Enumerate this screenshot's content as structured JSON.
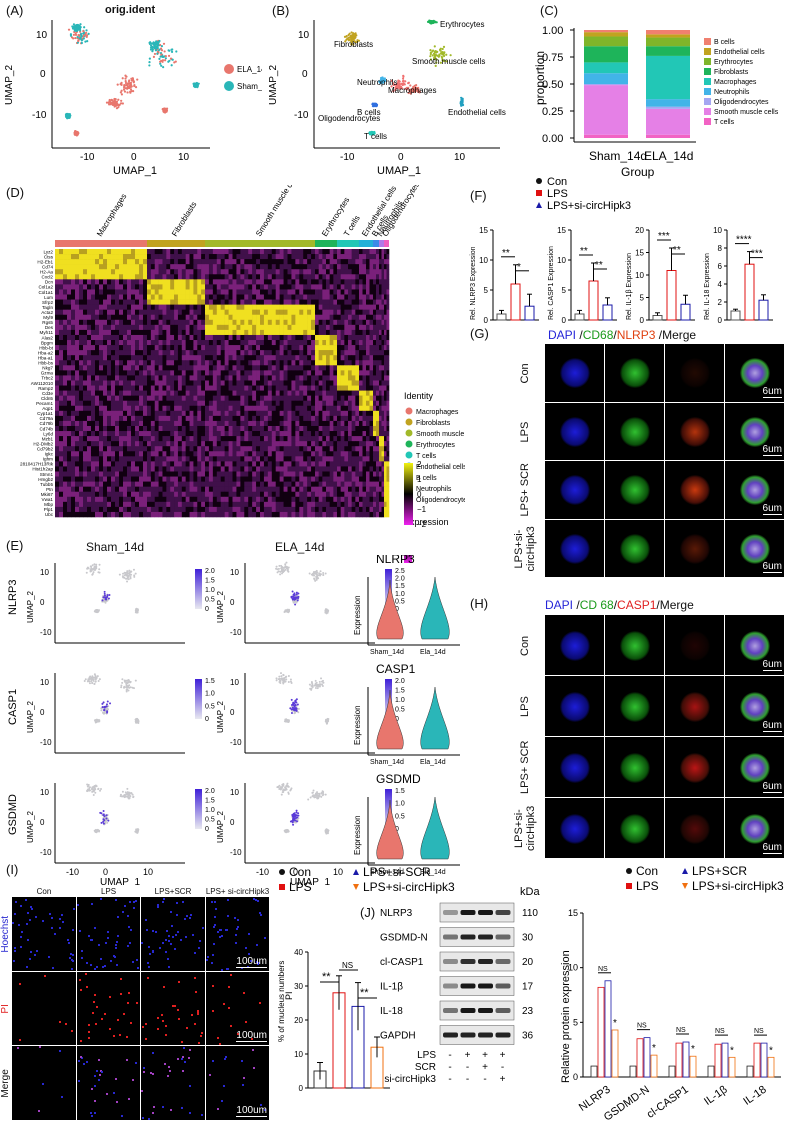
{
  "panels": {
    "A": {
      "label": "(A)",
      "title": "orig.ident",
      "xlabel": "UMAP_1",
      "ylabel": "UMAP_2",
      "xticks": [
        "-10",
        "0",
        "10"
      ],
      "yticks": [
        "10",
        "0",
        "-10"
      ],
      "legend": [
        {
          "name": "ELA_14d",
          "color": "#e8766d"
        },
        {
          "name": "Sham_14d",
          "color": "#2ab6b8"
        }
      ]
    },
    "B": {
      "label": "(B)",
      "xlabel": "UMAP_1",
      "ylabel": "UMAP_2",
      "xticks": [
        "-10",
        "0",
        "10"
      ],
      "yticks": [
        "10",
        "0",
        "-10"
      ],
      "clusters": [
        "Fibroblasts",
        "Erythrocytes",
        "Smooth muscle cells",
        "Neutrophils",
        "Macrophages",
        "B cells",
        "Oligodendrocytes",
        "T cells",
        "Endothelial cells"
      ]
    },
    "C": {
      "label": "(C)",
      "xlabel": "Group",
      "ylabel": "proportion",
      "yticks": [
        "1.00",
        "0.75",
        "0.50",
        "0.25",
        "0.00"
      ],
      "legend": [
        "B cells",
        "Endothelial cells",
        "Erythrocytes",
        "Fibroblasts",
        "Macrophages",
        "Neutrophils",
        "Oligodendrocytes",
        "Smooth muscle cells",
        "T cells"
      ]
    },
    "D": {
      "label": "(D)",
      "groups": [
        "Macrophages",
        "Fibroblasts",
        "Smooth muscle cells",
        "Erythrocytes",
        "T cells",
        "Endothelial cells",
        "B cells",
        "Neutrophils",
        "Oligodendrocytes"
      ],
      "genes": [
        "Lyz2",
        "Ctss",
        "H2-Eb1",
        "Cd74",
        "H2-Aa",
        "Cxcl2",
        "Dcn",
        "Col1a2",
        "Col1a1",
        "Lum",
        "Sfrp2",
        "Tagln",
        "Acta2",
        "Myl9",
        "Rgs5",
        "Des",
        "Myh11",
        "Alas2",
        "Bpgm",
        "Hbb-bt",
        "Hba-a2",
        "Hba-a1",
        "Hbb-bs",
        "Nkg7",
        "Gzma",
        "Trbc2",
        "AW112010",
        "Ramp2",
        "Cd3e",
        "Cldn5",
        "Pecam1",
        "Aqp1",
        "Cyp1a1",
        "Cd79a",
        "Cd79b",
        "Cd74b",
        "Ly6d",
        "Mzb1",
        "H2-DMb2",
        "Cd79b2",
        "Igkc",
        "Ighm",
        "2810417H13Rik",
        "Hist1h2ap",
        "Stmn1",
        "Hmgb2",
        "Tubb5",
        "Ptn",
        "Mki67",
        "Vwa1",
        "Mbp",
        "Plp1",
        "Ubc"
      ],
      "identity_title": "Identity",
      "expression_title": "Expression",
      "expression_ticks": [
        "2",
        "1",
        "0",
        "−1",
        "−2"
      ]
    },
    "E": {
      "label": "(E)",
      "col_titles": [
        "Sham_14d",
        "ELA_14d"
      ],
      "rows": [
        {
          "gene": "NLRP3",
          "ticks_sham": [
            "2.0",
            "1.5",
            "1.0",
            "0.5",
            "0"
          ],
          "ticks_ela": [
            "2.5",
            "2.0",
            "1.5",
            "1.0",
            "0.5",
            "0"
          ]
        },
        {
          "gene": "CASP1",
          "ticks_sham": [
            "1.5",
            "1.0",
            "0.5",
            "0"
          ],
          "ticks_ela": [
            "2.0",
            "1.5",
            "1.0",
            "0.5",
            "0"
          ]
        },
        {
          "gene": "GSDMD",
          "ticks_sham": [
            "2.0",
            "1.5",
            "1.0",
            "0.5",
            "0"
          ],
          "ticks_ela": [
            "1.5",
            "1.0",
            "0.5",
            "0"
          ]
        }
      ],
      "xlabel": "UMAP_1",
      "ylabel": "UMAP_2",
      "xticks": [
        "-10",
        "0",
        "10"
      ],
      "yticks": [
        "10",
        "0",
        "-10"
      ],
      "violin_ylabel": "Expression",
      "violin_x": [
        "Sham_14d",
        "Ela_14d"
      ]
    },
    "F": {
      "label": "(F)",
      "legend": [
        "Con",
        "LPS",
        "LPS+si-circHipk3"
      ],
      "subplots": [
        {
          "ylabel": "Rel. NLRP3 Expression",
          "yticks": [
            "15",
            "10",
            "5",
            "0"
          ],
          "sig": [
            "**",
            "*"
          ]
        },
        {
          "ylabel": "Rel. CASP1 Expression",
          "yticks": [
            "15",
            "10",
            "5",
            "0"
          ],
          "sig": [
            "**",
            "**"
          ]
        },
        {
          "ylabel": "Rel. IL-1β Expression",
          "yticks": [
            "20",
            "15",
            "10",
            "5",
            "0"
          ],
          "sig": [
            "***",
            "**"
          ]
        },
        {
          "ylabel": "Rel. IL-18 Expression",
          "yticks": [
            "10",
            "8",
            "6",
            "4",
            "2",
            "0"
          ],
          "sig": [
            "****",
            "***"
          ]
        }
      ]
    },
    "G": {
      "label": "(G)",
      "header": [
        "DAPI",
        " /",
        "CD68",
        "/",
        "NLRP3",
        " /Merge"
      ],
      "header_colors": [
        "#2525d8",
        "#111",
        "#1a9a1a",
        "#111",
        "#e04010",
        "#111"
      ],
      "rows": [
        "Con",
        "LPS",
        "LPS+ SCR",
        "LPS+si- circHipk3"
      ],
      "scale": "6um"
    },
    "H": {
      "label": "(H)",
      "header": [
        "DAPI",
        " /",
        "CD 68",
        "/",
        "CASP1",
        "/Merge"
      ],
      "header_colors": [
        "#2525d8",
        "#111",
        "#1a9a1a",
        "#111",
        "#e02020",
        "#111"
      ],
      "rows": [
        "Con",
        "LPS",
        "LPS+ SCR",
        "LPS+si- circHipk3"
      ],
      "scale": "6um"
    },
    "I": {
      "label": "(I)",
      "cols": [
        "Con",
        "LPS",
        "LPS+SCR",
        "LPS+ si-circHipk3"
      ],
      "rows": [
        "Hoechst",
        "PI",
        "Merge"
      ],
      "scale": "100um",
      "legend": [
        "Con",
        "LPS",
        "LPS+si-SCR",
        "LPS+si-circHipk3"
      ],
      "ylabel_top": "PI",
      "ylabel": "% of mucleus numbers",
      "yticks": [
        "40",
        "30",
        "20",
        "10",
        "0"
      ],
      "sig": [
        "**",
        "NS",
        "**"
      ]
    },
    "J": {
      "label": "(J)",
      "kda_title": "kDa",
      "blots": [
        {
          "name": "NLRP3",
          "kda": "110"
        },
        {
          "name": "GSDMD-N",
          "kda": "30"
        },
        {
          "name": "cl-CASP1",
          "kda": "20"
        },
        {
          "name": "IL-1β",
          "kda": "17"
        },
        {
          "name": "IL-18",
          "kda": "23"
        },
        {
          "name": "GAPDH",
          "kda": "36"
        }
      ],
      "conditions": [
        {
          "name": "LPS",
          "values": [
            "-",
            "+",
            "+",
            "+"
          ]
        },
        {
          "name": "SCR",
          "values": [
            "-",
            "-",
            "+",
            "-"
          ]
        },
        {
          "name": "si-circHipk3",
          "values": [
            "-",
            "-",
            "-",
            "+"
          ]
        }
      ],
      "legend": [
        "Con",
        "LPS",
        "LPS+SCR",
        "LPS+si-circHipk3"
      ],
      "ylabel": "Relative protein expression",
      "yticks": [
        "15",
        "10",
        "5",
        "0"
      ],
      "categories": [
        "NLRP3",
        "GSDMD-N",
        "cl-CASP1",
        "IL-1β",
        "IL-18"
      ],
      "sig_ns": "NS",
      "sig_star": "*"
    }
  },
  "colors": {
    "con": "#111111",
    "lps": "#e01010",
    "si": "#f07010",
    "scr": "#1a1aa8",
    "ela": "#e8766d",
    "sham": "#2ab6b8"
  },
  "chart_data": [
    {
      "type": "bar",
      "id": "C",
      "categories": [
        "Sham_14d",
        "ELA_14d"
      ],
      "series": [
        {
          "name": "T cells",
          "color": "#f263c4",
          "values": [
            0.03,
            0.03
          ]
        },
        {
          "name": "Smooth muscle cells",
          "color": "#e580e6",
          "values": [
            0.46,
            0.24
          ]
        },
        {
          "name": "Oligodendrocytes",
          "color": "#a5a6f2",
          "values": [
            0.01,
            0.02
          ]
        },
        {
          "name": "Neutrophils",
          "color": "#42b4e8",
          "values": [
            0.1,
            0.07
          ]
        },
        {
          "name": "Macrophages",
          "color": "#22c7b6",
          "values": [
            0.1,
            0.4
          ]
        },
        {
          "name": "Fibroblasts",
          "color": "#1eb45a",
          "values": [
            0.15,
            0.09
          ]
        },
        {
          "name": "Erythrocytes",
          "color": "#7fb52a",
          "values": [
            0.09,
            0.08
          ]
        },
        {
          "name": "Endothelial cells",
          "color": "#c1a320",
          "values": [
            0.04,
            0.03
          ]
        },
        {
          "name": "B cells",
          "color": "#f08070",
          "values": [
            0.02,
            0.04
          ]
        }
      ],
      "ylim": [
        0,
        1
      ]
    },
    {
      "type": "bar",
      "id": "F1",
      "categories": [
        "Con",
        "LPS",
        "LPS+si-circHipk3"
      ],
      "values": [
        1.0,
        6.0,
        2.3
      ],
      "errors": [
        0.6,
        3.2,
        2.0
      ],
      "ylim": [
        0,
        15
      ]
    },
    {
      "type": "bar",
      "id": "F2",
      "categories": [
        "Con",
        "LPS",
        "LPS+si-circHipk3"
      ],
      "values": [
        1.0,
        6.5,
        2.5
      ],
      "errors": [
        0.6,
        3.0,
        1.2
      ],
      "ylim": [
        0,
        15
      ]
    },
    {
      "type": "bar",
      "id": "F3",
      "categories": [
        "Con",
        "LPS",
        "LPS+si-circHipk3"
      ],
      "values": [
        1.0,
        11.0,
        3.5
      ],
      "errors": [
        0.6,
        5.0,
        2.0
      ],
      "ylim": [
        0,
        20
      ]
    },
    {
      "type": "bar",
      "id": "F4",
      "categories": [
        "Con",
        "LPS",
        "LPS+si-circHipk3"
      ],
      "values": [
        1.0,
        6.2,
        2.2
      ],
      "errors": [
        0.2,
        1.4,
        0.6
      ],
      "ylim": [
        0,
        10
      ]
    },
    {
      "type": "bar",
      "id": "I",
      "categories": [
        "Con",
        "LPS",
        "LPS+si-SCR",
        "LPS+si-circHipk3"
      ],
      "values": [
        5,
        28,
        24,
        12
      ],
      "errors": [
        2.5,
        5,
        7,
        3
      ],
      "ylim": [
        0,
        40
      ]
    },
    {
      "type": "bar",
      "id": "J",
      "categories": [
        "NLRP3",
        "GSDMD-N",
        "cl-CASP1",
        "IL-1β",
        "IL-18"
      ],
      "series": [
        {
          "name": "Con",
          "values": [
            1,
            1,
            1,
            1,
            1
          ]
        },
        {
          "name": "LPS",
          "values": [
            8.2,
            3.5,
            3.1,
            3.0,
            3.1
          ]
        },
        {
          "name": "LPS+SCR",
          "values": [
            8.8,
            3.6,
            3.2,
            3.1,
            3.1
          ]
        },
        {
          "name": "LPS+si-circHipk3",
          "values": [
            4.3,
            2.0,
            1.9,
            1.8,
            1.8
          ]
        }
      ],
      "ylim": [
        0,
        15
      ]
    }
  ]
}
